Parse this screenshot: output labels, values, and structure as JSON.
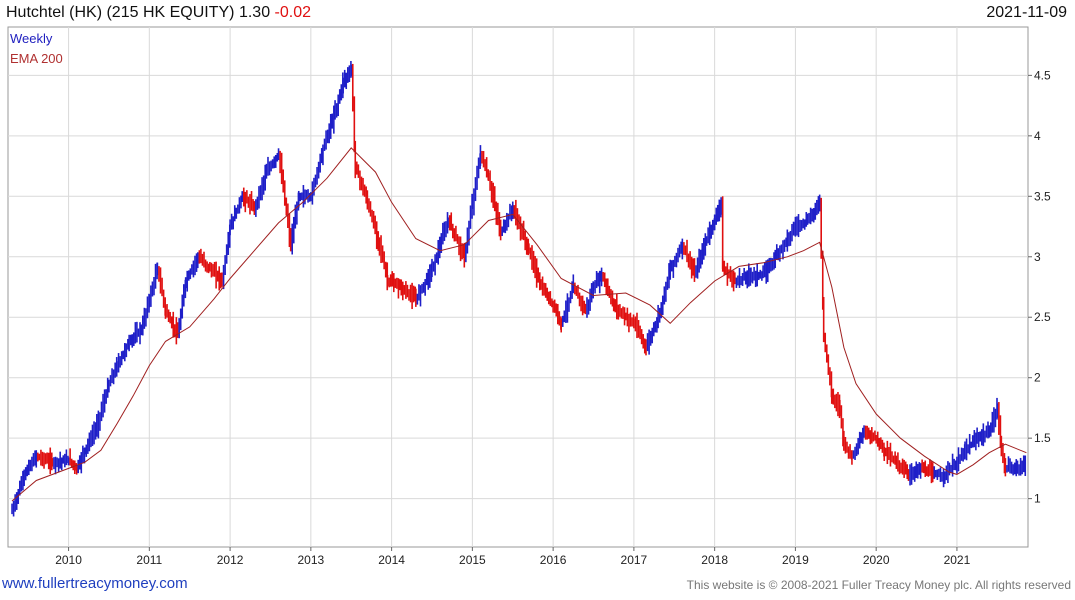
{
  "header": {
    "title": "Hutchtel (HK) (215 HK EQUITY) 1.30",
    "change": "-0.02",
    "date": "2021-11-09"
  },
  "legend": {
    "weekly": "Weekly",
    "ema": "EMA 200"
  },
  "footer": {
    "left": "www.fullertreacymoney.com",
    "right": "This website is © 2008-2021 Fuller Treacy Money plc. All rights reserved"
  },
  "colors": {
    "up": "#1f1fc8",
    "down": "#e01010",
    "ema": "#a02020",
    "grid": "#d9d9d9"
  },
  "chart_data": {
    "type": "line",
    "x_unit": "year",
    "xlim": [
      2009.25,
      2021.88
    ],
    "ylim": [
      0.6,
      4.9
    ],
    "log_scale": false,
    "grid": true,
    "x_ticks": [
      2010,
      2011,
      2012,
      2013,
      2014,
      2015,
      2016,
      2017,
      2018,
      2019,
      2020,
      2021
    ],
    "x_tick_labels": [
      "2010",
      "2011",
      "2012",
      "2013",
      "2014",
      "2015",
      "2016",
      "2017",
      "2018",
      "2019",
      "2020",
      "2021"
    ],
    "y_ticks": [
      1,
      1.5,
      2,
      2.5,
      3,
      3.5,
      4,
      4.5
    ],
    "y_tick_labels": [
      "1",
      "1.5",
      "2",
      "2.5",
      "3",
      "3.5",
      "4",
      "4.5"
    ],
    "series": [
      {
        "name": "Weekly",
        "style": "weekly-bars",
        "x": [
          2009.3,
          2009.45,
          2009.6,
          2009.8,
          2010.0,
          2010.1,
          2010.2,
          2010.35,
          2010.5,
          2010.6,
          2010.75,
          2010.9,
          2011.0,
          2011.1,
          2011.2,
          2011.35,
          2011.45,
          2011.6,
          2011.75,
          2011.9,
          2012.0,
          2012.15,
          2012.3,
          2012.45,
          2012.6,
          2012.75,
          2012.85,
          2013.0,
          2013.15,
          2013.3,
          2013.4,
          2013.5,
          2013.55,
          2013.7,
          2013.85,
          2013.95,
          2014.1,
          2014.3,
          2014.5,
          2014.7,
          2014.9,
          2015.0,
          2015.1,
          2015.2,
          2015.35,
          2015.5,
          2015.7,
          2015.85,
          2016.0,
          2016.1,
          2016.25,
          2016.4,
          2016.5,
          2016.6,
          2016.75,
          2016.9,
          2017.0,
          2017.15,
          2017.3,
          2017.45,
          2017.6,
          2017.75,
          2017.9,
          2018.0,
          2018.08,
          2018.1,
          2018.25,
          2018.45,
          2018.6,
          2018.75,
          2018.9,
          2019.0,
          2019.15,
          2019.3,
          2019.35,
          2019.45,
          2019.55,
          2019.6,
          2019.7,
          2019.85,
          2020.0,
          2020.1,
          2020.25,
          2020.4,
          2020.55,
          2020.7,
          2020.85,
          2021.0,
          2021.1,
          2021.25,
          2021.4,
          2021.5,
          2021.55,
          2021.6,
          2021.75,
          2021.86
        ],
        "values": [
          0.9,
          1.2,
          1.35,
          1.3,
          1.32,
          1.25,
          1.4,
          1.6,
          1.95,
          2.1,
          2.3,
          2.4,
          2.65,
          2.9,
          2.55,
          2.35,
          2.8,
          3.0,
          2.9,
          2.8,
          3.25,
          3.5,
          3.4,
          3.7,
          3.85,
          3.1,
          3.5,
          3.5,
          3.9,
          4.2,
          4.45,
          4.55,
          3.75,
          3.45,
          3.1,
          2.8,
          2.75,
          2.65,
          2.9,
          3.3,
          3.0,
          3.45,
          3.85,
          3.65,
          3.2,
          3.4,
          3.05,
          2.75,
          2.6,
          2.45,
          2.75,
          2.55,
          2.75,
          2.85,
          2.6,
          2.5,
          2.45,
          2.25,
          2.5,
          2.9,
          3.1,
          2.85,
          3.15,
          3.3,
          3.45,
          2.9,
          2.8,
          2.85,
          2.85,
          3.0,
          3.15,
          3.25,
          3.3,
          3.45,
          2.35,
          1.85,
          1.75,
          1.45,
          1.35,
          1.55,
          1.5,
          1.4,
          1.3,
          1.2,
          1.25,
          1.2,
          1.2,
          1.3,
          1.4,
          1.5,
          1.55,
          1.75,
          1.4,
          1.25,
          1.25,
          1.3
        ],
        "final_value": 1.3
      },
      {
        "name": "EMA 200",
        "style": "line",
        "x": [
          2009.3,
          2009.6,
          2010.0,
          2010.2,
          2010.4,
          2010.6,
          2010.8,
          2011.0,
          2011.2,
          2011.5,
          2011.8,
          2012.0,
          2012.3,
          2012.6,
          2012.9,
          2013.2,
          2013.5,
          2013.8,
          2014.0,
          2014.3,
          2014.6,
          2014.9,
          2015.2,
          2015.5,
          2015.8,
          2016.1,
          2016.5,
          2016.9,
          2017.2,
          2017.45,
          2017.7,
          2018.0,
          2018.3,
          2018.6,
          2018.9,
          2019.1,
          2019.3,
          2019.45,
          2019.6,
          2019.75,
          2020.0,
          2020.3,
          2020.6,
          2020.9,
          2021.0,
          2021.2,
          2021.4,
          2021.6,
          2021.86
        ],
        "values": [
          0.98,
          1.15,
          1.25,
          1.3,
          1.4,
          1.62,
          1.85,
          2.1,
          2.3,
          2.42,
          2.65,
          2.82,
          3.05,
          3.28,
          3.45,
          3.65,
          3.9,
          3.7,
          3.45,
          3.15,
          3.05,
          3.1,
          3.3,
          3.35,
          3.1,
          2.82,
          2.68,
          2.7,
          2.6,
          2.45,
          2.62,
          2.8,
          2.92,
          2.95,
          3.0,
          3.05,
          3.12,
          2.75,
          2.25,
          1.95,
          1.7,
          1.5,
          1.35,
          1.22,
          1.2,
          1.28,
          1.38,
          1.45,
          1.38
        ]
      }
    ]
  }
}
